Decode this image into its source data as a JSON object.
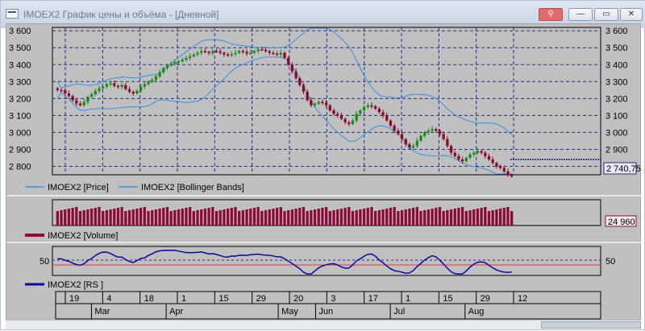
{
  "window": {
    "title": "IMOEX2 График цены и объёма - [Дневной]",
    "buttons": {
      "pin": "⚲",
      "minimize": "—",
      "maximize": "▭",
      "close": "✕"
    }
  },
  "price_panel": {
    "y_ticks": [
      "3 600",
      "3 500",
      "3 400",
      "3 300",
      "3 200",
      "3 100",
      "3 000",
      "2 900",
      "2 800"
    ],
    "last_value": "2 740,75",
    "legend": [
      "IMOEX2 [Price]",
      "IMOEX2 [Bollinger Bands]"
    ]
  },
  "volume_panel": {
    "last_value": "24 960",
    "legend": "IMOEX2 [Volume]"
  },
  "rs_panel": {
    "tick": "50",
    "legend": "IMOEX2 [RS ]"
  },
  "x_axis": {
    "days": [
      "19",
      "4",
      "18",
      "1",
      "15",
      "29",
      "20",
      "3",
      "17",
      "1",
      "15",
      "29",
      "12"
    ],
    "months": [
      "Mar",
      "Apr",
      "May",
      "Jun",
      "Jul",
      "Aug"
    ]
  },
  "colors": {
    "background": "#c0c0c0",
    "candle_up": "#1a8a1a",
    "candle_down": "#8b0a2a",
    "bollinger": "#3a8ee0",
    "volume": "#8b0a3a",
    "rs_line": "#0a0a9a",
    "rs_midline": "#d04040",
    "grid": "#1f2d8a"
  },
  "chart_data": {
    "type": "line",
    "title": "",
    "price_closes": [
      3250,
      3248,
      3230,
      3215,
      3190,
      3170,
      3160,
      3180,
      3210,
      3225,
      3245,
      3260,
      3270,
      3285,
      3290,
      3275,
      3268,
      3280,
      3255,
      3240,
      3230,
      3245,
      3270,
      3285,
      3300,
      3310,
      3330,
      3355,
      3380,
      3395,
      3405,
      3415,
      3420,
      3430,
      3440,
      3450,
      3460,
      3470,
      3480,
      3475,
      3468,
      3480,
      3478,
      3470,
      3460,
      3455,
      3462,
      3470,
      3480,
      3475,
      3465,
      3470,
      3480,
      3490,
      3488,
      3480,
      3470,
      3465,
      3460,
      3470,
      3440,
      3400,
      3360,
      3320,
      3280,
      3240,
      3190,
      3160,
      3170,
      3180,
      3175,
      3160,
      3130,
      3110,
      3100,
      3080,
      3060,
      3050,
      3070,
      3110,
      3130,
      3150,
      3160,
      3155,
      3140,
      3120,
      3100,
      3070,
      3040,
      3010,
      2990,
      2960,
      2930,
      2910,
      2920,
      2950,
      2980,
      3000,
      3010,
      3020,
      3010,
      2990,
      2960,
      2920,
      2880,
      2860,
      2840,
      2830,
      2850,
      2870,
      2880,
      2890,
      2880,
      2860,
      2840,
      2820,
      2800,
      2790,
      2770,
      2750,
      2740
    ],
    "y_range": [
      2750,
      3620
    ],
    "rs_range": [
      30,
      70
    ],
    "rs_midline": 50
  }
}
